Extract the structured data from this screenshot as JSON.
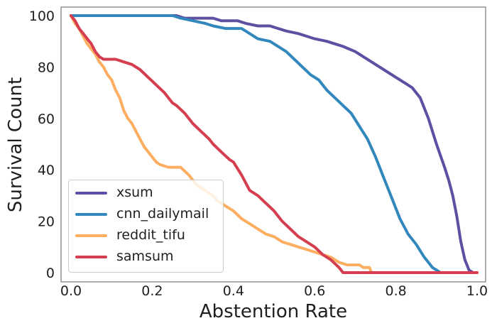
{
  "chart_data": {
    "type": "line",
    "title": "",
    "xlabel": "Abstention Rate",
    "ylabel": "Survival Count",
    "xlim": [
      0.0,
      1.0
    ],
    "ylim": [
      0,
      100
    ],
    "x_ticks": [
      "0.0",
      "0.2",
      "0.4",
      "0.6",
      "0.8",
      "1.0"
    ],
    "y_ticks": [
      "0",
      "20",
      "40",
      "60",
      "80",
      "100"
    ],
    "grid": false,
    "legend_position": "lower-left",
    "legend_labels": [
      "xsum",
      "cnn_dailymail",
      "reddit_tifu",
      "samsum"
    ],
    "colors": {
      "xsum": "#5e4fa2",
      "cnn_dailymail": "#3288bd",
      "reddit_tifu": "#fdae61",
      "samsum": "#d53e4f",
      "spine": "#8a8a8a",
      "text": "#1f1f1f"
    },
    "series": [
      {
        "name": "xsum",
        "color": "#5e4fa2",
        "points": [
          [
            0,
            100
          ],
          [
            0.26,
            100
          ],
          [
            0.28,
            99
          ],
          [
            0.35,
            99
          ],
          [
            0.37,
            98
          ],
          [
            0.41,
            98
          ],
          [
            0.43,
            97
          ],
          [
            0.46,
            96
          ],
          [
            0.49,
            96
          ],
          [
            0.51,
            95
          ],
          [
            0.53,
            94
          ],
          [
            0.56,
            93
          ],
          [
            0.58,
            92
          ],
          [
            0.6,
            91
          ],
          [
            0.63,
            90
          ],
          [
            0.65,
            89
          ],
          [
            0.67,
            88
          ],
          [
            0.7,
            86
          ],
          [
            0.72,
            84
          ],
          [
            0.74,
            82
          ],
          [
            0.77,
            79
          ],
          [
            0.8,
            76
          ],
          [
            0.82,
            74
          ],
          [
            0.84,
            72
          ],
          [
            0.86,
            68
          ],
          [
            0.88,
            60
          ],
          [
            0.9,
            50
          ],
          [
            0.92,
            41
          ],
          [
            0.93,
            36
          ],
          [
            0.94,
            30
          ],
          [
            0.95,
            22
          ],
          [
            0.96,
            12
          ],
          [
            0.97,
            5
          ],
          [
            0.98,
            1
          ],
          [
            0.99,
            0
          ],
          [
            1.0,
            0
          ]
        ]
      },
      {
        "name": "cnn_dailymail",
        "color": "#3288bd",
        "points": [
          [
            0,
            100
          ],
          [
            0.25,
            100
          ],
          [
            0.27,
            99
          ],
          [
            0.3,
            98
          ],
          [
            0.33,
            97
          ],
          [
            0.35,
            96
          ],
          [
            0.38,
            95
          ],
          [
            0.42,
            95
          ],
          [
            0.44,
            93
          ],
          [
            0.46,
            91
          ],
          [
            0.49,
            90
          ],
          [
            0.51,
            88
          ],
          [
            0.53,
            86
          ],
          [
            0.55,
            83
          ],
          [
            0.57,
            80
          ],
          [
            0.59,
            77
          ],
          [
            0.61,
            75
          ],
          [
            0.63,
            71
          ],
          [
            0.65,
            68
          ],
          [
            0.67,
            65
          ],
          [
            0.69,
            62
          ],
          [
            0.71,
            57
          ],
          [
            0.73,
            52
          ],
          [
            0.75,
            45
          ],
          [
            0.77,
            37
          ],
          [
            0.79,
            29
          ],
          [
            0.81,
            21
          ],
          [
            0.83,
            15
          ],
          [
            0.85,
            11
          ],
          [
            0.87,
            6
          ],
          [
            0.89,
            2
          ],
          [
            0.91,
            0
          ]
        ]
      },
      {
        "name": "reddit_tifu",
        "color": "#fdae61",
        "points": [
          [
            0,
            100
          ],
          [
            0.01,
            97
          ],
          [
            0.02,
            95
          ],
          [
            0.03,
            92
          ],
          [
            0.04,
            89
          ],
          [
            0.05,
            87
          ],
          [
            0.06,
            85
          ],
          [
            0.07,
            82
          ],
          [
            0.08,
            80
          ],
          [
            0.09,
            77
          ],
          [
            0.1,
            75
          ],
          [
            0.11,
            71
          ],
          [
            0.12,
            68
          ],
          [
            0.13,
            63
          ],
          [
            0.14,
            60
          ],
          [
            0.15,
            58
          ],
          [
            0.16,
            55
          ],
          [
            0.17,
            52
          ],
          [
            0.18,
            49
          ],
          [
            0.19,
            47
          ],
          [
            0.2,
            45
          ],
          [
            0.21,
            43
          ],
          [
            0.22,
            42
          ],
          [
            0.24,
            41
          ],
          [
            0.27,
            41
          ],
          [
            0.29,
            38
          ],
          [
            0.3,
            36
          ],
          [
            0.31,
            34
          ],
          [
            0.32,
            33
          ],
          [
            0.34,
            31
          ],
          [
            0.35,
            30
          ],
          [
            0.36,
            28
          ],
          [
            0.38,
            26
          ],
          [
            0.4,
            24
          ],
          [
            0.42,
            21
          ],
          [
            0.44,
            19
          ],
          [
            0.46,
            17
          ],
          [
            0.48,
            15
          ],
          [
            0.5,
            14
          ],
          [
            0.52,
            12
          ],
          [
            0.54,
            11
          ],
          [
            0.56,
            10
          ],
          [
            0.58,
            9
          ],
          [
            0.6,
            8
          ],
          [
            0.62,
            7
          ],
          [
            0.64,
            6
          ],
          [
            0.66,
            4
          ],
          [
            0.68,
            3
          ],
          [
            0.71,
            3
          ],
          [
            0.72,
            2
          ],
          [
            0.735,
            2
          ],
          [
            0.74,
            0
          ],
          [
            1.0,
            0
          ]
        ]
      },
      {
        "name": "samsum",
        "color": "#d53e4f",
        "points": [
          [
            0,
            100
          ],
          [
            0.01,
            98
          ],
          [
            0.02,
            95
          ],
          [
            0.03,
            93
          ],
          [
            0.04,
            91
          ],
          [
            0.05,
            89
          ],
          [
            0.06,
            86
          ],
          [
            0.07,
            84
          ],
          [
            0.08,
            83
          ],
          [
            0.11,
            83
          ],
          [
            0.13,
            82
          ],
          [
            0.15,
            81
          ],
          [
            0.17,
            79
          ],
          [
            0.19,
            76
          ],
          [
            0.21,
            73
          ],
          [
            0.23,
            70
          ],
          [
            0.25,
            66
          ],
          [
            0.26,
            65
          ],
          [
            0.28,
            62
          ],
          [
            0.3,
            58
          ],
          [
            0.32,
            55
          ],
          [
            0.34,
            52
          ],
          [
            0.35,
            50
          ],
          [
            0.37,
            47
          ],
          [
            0.39,
            44
          ],
          [
            0.4,
            43
          ],
          [
            0.42,
            38
          ],
          [
            0.44,
            32
          ],
          [
            0.46,
            30
          ],
          [
            0.48,
            27
          ],
          [
            0.5,
            24
          ],
          [
            0.52,
            20
          ],
          [
            0.54,
            17
          ],
          [
            0.56,
            14
          ],
          [
            0.58,
            12
          ],
          [
            0.6,
            10
          ],
          [
            0.62,
            7
          ],
          [
            0.64,
            5
          ],
          [
            0.66,
            2
          ],
          [
            0.67,
            0
          ],
          [
            1.0,
            0
          ]
        ]
      }
    ]
  }
}
